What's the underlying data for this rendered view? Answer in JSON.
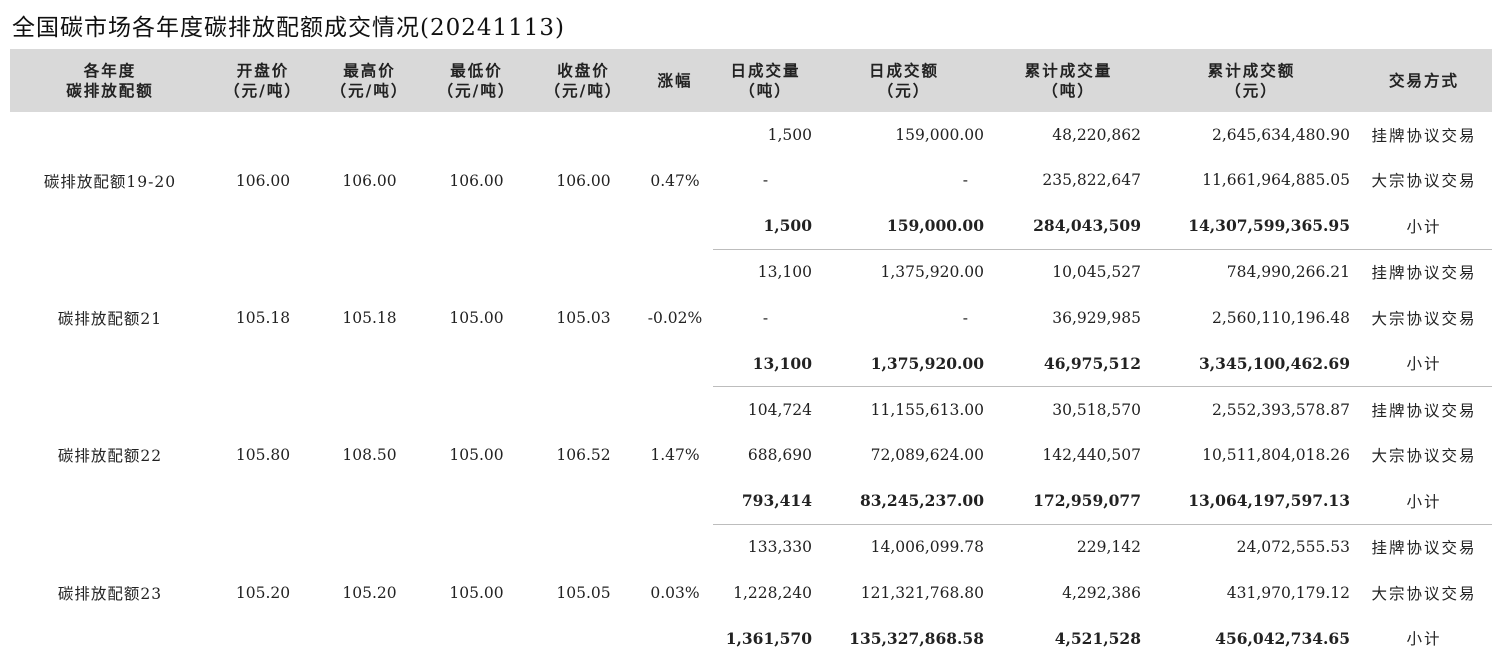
{
  "title": "全国碳市场各年度碳排放配额成交情况(20241113)",
  "columns": [
    "各年度\n碳排放配额",
    "开盘价\n（元/吨）",
    "最高价\n（元/吨）",
    "最低价\n（元/吨）",
    "收盘价\n（元/吨）",
    "涨幅",
    "日成交量\n（吨）",
    "日成交额\n（元）",
    "累计成交量\n（吨）",
    "累计成交额\n（元）",
    "交易方式"
  ],
  "groups": [
    {
      "name": "碳排放配额19-20",
      "open": "106.00",
      "high": "106.00",
      "low": "106.00",
      "close": "106.00",
      "change": "0.47%",
      "rows": [
        {
          "vol": "1,500",
          "amt": "159,000.00",
          "cvol": "48,220,862",
          "camt": "2,645,634,480.90",
          "mode": "挂牌协议交易"
        },
        {
          "vol": "-",
          "amt": "-",
          "cvol": "235,822,647",
          "camt": "11,661,964,885.05",
          "mode": "大宗协议交易"
        },
        {
          "vol": "1,500",
          "amt": "159,000.00",
          "cvol": "284,043,509",
          "camt": "14,307,599,365.95",
          "mode": "小计"
        }
      ]
    },
    {
      "name": "碳排放配额21",
      "open": "105.18",
      "high": "105.18",
      "low": "105.00",
      "close": "105.03",
      "change": "-0.02%",
      "rows": [
        {
          "vol": "13,100",
          "amt": "1,375,920.00",
          "cvol": "10,045,527",
          "camt": "784,990,266.21",
          "mode": "挂牌协议交易"
        },
        {
          "vol": "-",
          "amt": "-",
          "cvol": "36,929,985",
          "camt": "2,560,110,196.48",
          "mode": "大宗协议交易"
        },
        {
          "vol": "13,100",
          "amt": "1,375,920.00",
          "cvol": "46,975,512",
          "camt": "3,345,100,462.69",
          "mode": "小计"
        }
      ]
    },
    {
      "name": "碳排放配额22",
      "open": "105.80",
      "high": "108.50",
      "low": "105.00",
      "close": "106.52",
      "change": "1.47%",
      "rows": [
        {
          "vol": "104,724",
          "amt": "11,155,613.00",
          "cvol": "30,518,570",
          "camt": "2,552,393,578.87",
          "mode": "挂牌协议交易"
        },
        {
          "vol": "688,690",
          "amt": "72,089,624.00",
          "cvol": "142,440,507",
          "camt": "10,511,804,018.26",
          "mode": "大宗协议交易"
        },
        {
          "vol": "793,414",
          "amt": "83,245,237.00",
          "cvol": "172,959,077",
          "camt": "13,064,197,597.13",
          "mode": "小计"
        }
      ]
    },
    {
      "name": "碳排放配额23",
      "open": "105.20",
      "high": "105.20",
      "low": "105.00",
      "close": "105.05",
      "change": "0.03%",
      "rows": [
        {
          "vol": "133,330",
          "amt": "14,006,099.78",
          "cvol": "229,142",
          "camt": "24,072,555.53",
          "mode": "挂牌协议交易"
        },
        {
          "vol": "1,228,240",
          "amt": "121,321,768.80",
          "cvol": "4,292,386",
          "camt": "431,970,179.12",
          "mode": "大宗协议交易"
        },
        {
          "vol": "1,361,570",
          "amt": "135,327,868.58",
          "cvol": "4,521,528",
          "camt": "456,042,734.65",
          "mode": "小计"
        }
      ]
    }
  ]
}
